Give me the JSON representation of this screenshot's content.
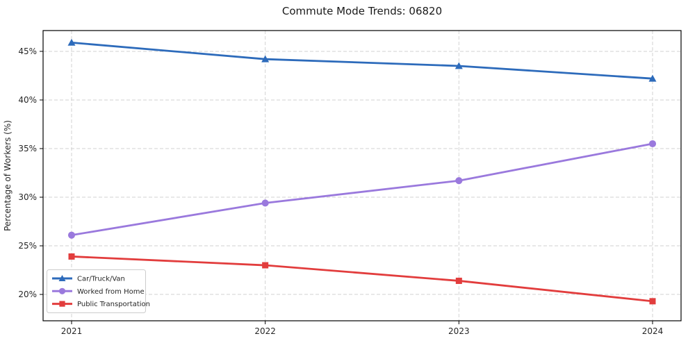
{
  "chart_data": {
    "type": "line",
    "title": "Commute Mode Trends: 06820",
    "xlabel": "",
    "ylabel": "Percentage of Workers (%)",
    "categories": [
      "2021",
      "2022",
      "2023",
      "2024"
    ],
    "series": [
      {
        "name": "Car/Truck/Van",
        "color": "#2d6bbb",
        "marker": "triangle",
        "values": [
          45.9,
          44.2,
          43.5,
          42.2
        ]
      },
      {
        "name": "Worked from Home",
        "color": "#9a79dd",
        "marker": "circle",
        "values": [
          26.1,
          29.4,
          31.7,
          35.5
        ]
      },
      {
        "name": "Public Transportation",
        "color": "#e23d3d",
        "marker": "square",
        "values": [
          23.9,
          23.0,
          21.4,
          19.3
        ]
      }
    ],
    "yticks": [
      20,
      25,
      30,
      35,
      40,
      45
    ],
    "ytick_suffix": "%",
    "ylim": [
      17.29,
      47.14
    ],
    "grid": true,
    "grid_style": "dashed",
    "grid_color": "#d2d2d2",
    "axis_color": "#000000",
    "legend_position": "lower-left",
    "background": "#ffffff"
  }
}
